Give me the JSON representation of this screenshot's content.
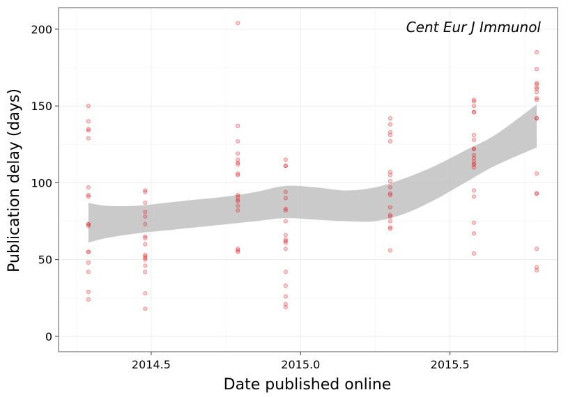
{
  "chart_data": {
    "type": "scatter",
    "annotation": "Cent Eur J Immunol",
    "xlabel": "Date published online",
    "ylabel": "Publication delay (days)",
    "xlim": [
      2014.19,
      2015.86
    ],
    "ylim": [
      -10,
      214
    ],
    "x_ticks": [
      2014.5,
      2015.0,
      2015.5
    ],
    "x_tick_labels": [
      "2014.5",
      "2015.0",
      "2015.5"
    ],
    "y_ticks": [
      0,
      50,
      100,
      150,
      200
    ],
    "y_tick_labels": [
      "0",
      "50",
      "100",
      "150",
      "200"
    ],
    "grid": true,
    "legend": "none",
    "colors": {
      "points": "#e41a1c",
      "band": "#bdbdbd",
      "panel_border": "#7f7f7f",
      "grid": "#ebebeb"
    },
    "points": [
      {
        "x": 2014.29,
        "y": 150
      },
      {
        "x": 2014.29,
        "y": 140
      },
      {
        "x": 2014.29,
        "y": 135
      },
      {
        "x": 2014.29,
        "y": 134
      },
      {
        "x": 2014.29,
        "y": 129
      },
      {
        "x": 2014.29,
        "y": 97
      },
      {
        "x": 2014.29,
        "y": 92
      },
      {
        "x": 2014.29,
        "y": 91
      },
      {
        "x": 2014.29,
        "y": 73
      },
      {
        "x": 2014.29,
        "y": 73
      },
      {
        "x": 2014.29,
        "y": 72
      },
      {
        "x": 2014.29,
        "y": 55
      },
      {
        "x": 2014.29,
        "y": 55
      },
      {
        "x": 2014.29,
        "y": 48
      },
      {
        "x": 2014.29,
        "y": 42
      },
      {
        "x": 2014.29,
        "y": 29
      },
      {
        "x": 2014.29,
        "y": 24
      },
      {
        "x": 2014.48,
        "y": 95
      },
      {
        "x": 2014.48,
        "y": 94
      },
      {
        "x": 2014.48,
        "y": 87
      },
      {
        "x": 2014.48,
        "y": 81
      },
      {
        "x": 2014.48,
        "y": 78
      },
      {
        "x": 2014.48,
        "y": 73
      },
      {
        "x": 2014.48,
        "y": 65
      },
      {
        "x": 2014.48,
        "y": 64
      },
      {
        "x": 2014.48,
        "y": 60
      },
      {
        "x": 2014.48,
        "y": 53
      },
      {
        "x": 2014.48,
        "y": 52
      },
      {
        "x": 2014.48,
        "y": 51
      },
      {
        "x": 2014.48,
        "y": 50
      },
      {
        "x": 2014.48,
        "y": 46
      },
      {
        "x": 2014.48,
        "y": 42
      },
      {
        "x": 2014.48,
        "y": 28
      },
      {
        "x": 2014.48,
        "y": 18
      },
      {
        "x": 2014.79,
        "y": 204
      },
      {
        "x": 2014.79,
        "y": 137
      },
      {
        "x": 2014.79,
        "y": 127
      },
      {
        "x": 2014.79,
        "y": 119
      },
      {
        "x": 2014.79,
        "y": 115
      },
      {
        "x": 2014.79,
        "y": 113
      },
      {
        "x": 2014.79,
        "y": 112
      },
      {
        "x": 2014.79,
        "y": 106
      },
      {
        "x": 2014.79,
        "y": 105
      },
      {
        "x": 2014.79,
        "y": 92
      },
      {
        "x": 2014.79,
        "y": 91
      },
      {
        "x": 2014.79,
        "y": 89
      },
      {
        "x": 2014.79,
        "y": 88
      },
      {
        "x": 2014.79,
        "y": 85
      },
      {
        "x": 2014.79,
        "y": 82
      },
      {
        "x": 2014.79,
        "y": 57
      },
      {
        "x": 2014.79,
        "y": 56
      },
      {
        "x": 2014.79,
        "y": 55
      },
      {
        "x": 2014.95,
        "y": 115
      },
      {
        "x": 2014.95,
        "y": 111
      },
      {
        "x": 2014.95,
        "y": 111
      },
      {
        "x": 2014.95,
        "y": 94
      },
      {
        "x": 2014.95,
        "y": 90
      },
      {
        "x": 2014.95,
        "y": 83
      },
      {
        "x": 2014.95,
        "y": 82
      },
      {
        "x": 2014.95,
        "y": 75
      },
      {
        "x": 2014.95,
        "y": 66
      },
      {
        "x": 2014.95,
        "y": 63
      },
      {
        "x": 2014.95,
        "y": 62
      },
      {
        "x": 2014.95,
        "y": 61
      },
      {
        "x": 2014.95,
        "y": 57
      },
      {
        "x": 2014.95,
        "y": 42
      },
      {
        "x": 2014.95,
        "y": 33
      },
      {
        "x": 2014.95,
        "y": 26
      },
      {
        "x": 2014.95,
        "y": 21
      },
      {
        "x": 2014.95,
        "y": 19
      },
      {
        "x": 2015.3,
        "y": 142
      },
      {
        "x": 2015.3,
        "y": 138
      },
      {
        "x": 2015.3,
        "y": 133
      },
      {
        "x": 2015.3,
        "y": 131
      },
      {
        "x": 2015.3,
        "y": 127
      },
      {
        "x": 2015.3,
        "y": 107
      },
      {
        "x": 2015.3,
        "y": 105
      },
      {
        "x": 2015.3,
        "y": 101
      },
      {
        "x": 2015.3,
        "y": 97
      },
      {
        "x": 2015.3,
        "y": 93
      },
      {
        "x": 2015.3,
        "y": 92
      },
      {
        "x": 2015.3,
        "y": 84
      },
      {
        "x": 2015.3,
        "y": 79
      },
      {
        "x": 2015.3,
        "y": 78
      },
      {
        "x": 2015.3,
        "y": 75
      },
      {
        "x": 2015.3,
        "y": 71
      },
      {
        "x": 2015.3,
        "y": 70
      },
      {
        "x": 2015.3,
        "y": 56
      },
      {
        "x": 2015.58,
        "y": 154
      },
      {
        "x": 2015.58,
        "y": 153
      },
      {
        "x": 2015.58,
        "y": 150
      },
      {
        "x": 2015.58,
        "y": 146
      },
      {
        "x": 2015.58,
        "y": 146
      },
      {
        "x": 2015.58,
        "y": 131
      },
      {
        "x": 2015.58,
        "y": 128
      },
      {
        "x": 2015.58,
        "y": 122
      },
      {
        "x": 2015.58,
        "y": 122
      },
      {
        "x": 2015.58,
        "y": 118
      },
      {
        "x": 2015.58,
        "y": 116
      },
      {
        "x": 2015.58,
        "y": 114
      },
      {
        "x": 2015.58,
        "y": 112
      },
      {
        "x": 2015.58,
        "y": 112
      },
      {
        "x": 2015.58,
        "y": 110
      },
      {
        "x": 2015.58,
        "y": 95
      },
      {
        "x": 2015.58,
        "y": 91
      },
      {
        "x": 2015.58,
        "y": 74
      },
      {
        "x": 2015.58,
        "y": 67
      },
      {
        "x": 2015.58,
        "y": 54
      },
      {
        "x": 2015.79,
        "y": 185
      },
      {
        "x": 2015.79,
        "y": 174
      },
      {
        "x": 2015.79,
        "y": 165
      },
      {
        "x": 2015.79,
        "y": 164
      },
      {
        "x": 2015.79,
        "y": 162
      },
      {
        "x": 2015.79,
        "y": 161
      },
      {
        "x": 2015.79,
        "y": 159
      },
      {
        "x": 2015.79,
        "y": 155
      },
      {
        "x": 2015.79,
        "y": 154
      },
      {
        "x": 2015.79,
        "y": 142
      },
      {
        "x": 2015.79,
        "y": 142
      },
      {
        "x": 2015.79,
        "y": 106
      },
      {
        "x": 2015.79,
        "y": 93
      },
      {
        "x": 2015.79,
        "y": 93
      },
      {
        "x": 2015.79,
        "y": 57
      },
      {
        "x": 2015.79,
        "y": 45
      },
      {
        "x": 2015.79,
        "y": 43
      }
    ],
    "confidence_band": [
      {
        "x": 2014.29,
        "upper": 87,
        "lower": 61
      },
      {
        "x": 2014.35,
        "upper": 85,
        "lower": 64
      },
      {
        "x": 2014.45,
        "upper": 85,
        "lower": 67
      },
      {
        "x": 2014.55,
        "upper": 87,
        "lower": 69
      },
      {
        "x": 2014.65,
        "upper": 89,
        "lower": 71
      },
      {
        "x": 2014.75,
        "upper": 91,
        "lower": 73
      },
      {
        "x": 2014.85,
        "upper": 94,
        "lower": 75
      },
      {
        "x": 2014.95,
        "upper": 98,
        "lower": 77
      },
      {
        "x": 2015.05,
        "upper": 97,
        "lower": 76
      },
      {
        "x": 2015.15,
        "upper": 95,
        "lower": 75
      },
      {
        "x": 2015.25,
        "upper": 97,
        "lower": 75
      },
      {
        "x": 2015.35,
        "upper": 103,
        "lower": 80
      },
      {
        "x": 2015.45,
        "upper": 111,
        "lower": 89
      },
      {
        "x": 2015.55,
        "upper": 121,
        "lower": 100
      },
      {
        "x": 2015.65,
        "upper": 131,
        "lower": 111
      },
      {
        "x": 2015.79,
        "upper": 151,
        "lower": 123
      }
    ]
  }
}
